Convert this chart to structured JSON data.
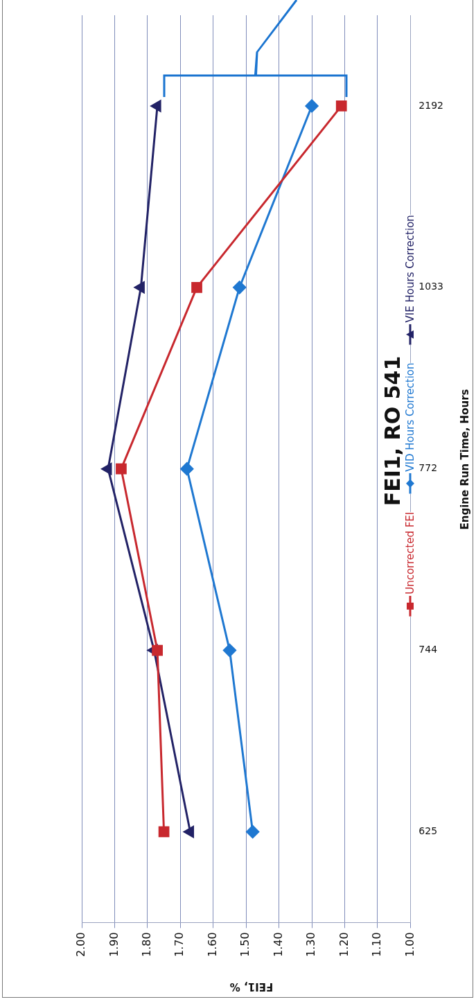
{
  "chart_data": {
    "type": "line",
    "orientation": "horizontal",
    "title": "FEI1, RO 541",
    "xlabel": "FEI1, %",
    "ylabel": "Engine Run Time, Hours",
    "categories": [
      "2192",
      "1033",
      "772",
      "744",
      "625"
    ],
    "series": [
      {
        "name": "Uncorrected FEI",
        "color": "#c8282e",
        "marker": "square",
        "values": [
          1.21,
          1.65,
          1.88,
          1.77,
          1.75
        ]
      },
      {
        "name": "VID Hours Correction",
        "color": "#1f78d1",
        "marker": "diamond",
        "values": [
          1.3,
          1.52,
          1.68,
          1.55,
          1.48
        ]
      },
      {
        "name": "VIE Hours Correction",
        "color": "#222266",
        "marker": "triangle",
        "values": [
          1.77,
          1.82,
          1.92,
          1.78,
          1.67
        ]
      }
    ],
    "xlim": [
      2.0,
      1.0
    ],
    "xticks": [
      {
        "value": 2.0,
        "label": "2.00"
      },
      {
        "value": 1.9,
        "label": "1.90"
      },
      {
        "value": 1.8,
        "label": "1.80"
      },
      {
        "value": 1.7,
        "label": "1.70"
      },
      {
        "value": 1.6,
        "label": "1.60"
      },
      {
        "value": 1.5,
        "label": "1.50"
      },
      {
        "value": 1.4,
        "label": "1.40"
      },
      {
        "value": 1.3,
        "label": "1.30"
      },
      {
        "value": 1.2,
        "label": "1.20"
      },
      {
        "value": 1.1,
        "label": "1.10"
      },
      {
        "value": 1.0,
        "label": "1.00"
      }
    ],
    "grid": "x",
    "legend": "right"
  }
}
